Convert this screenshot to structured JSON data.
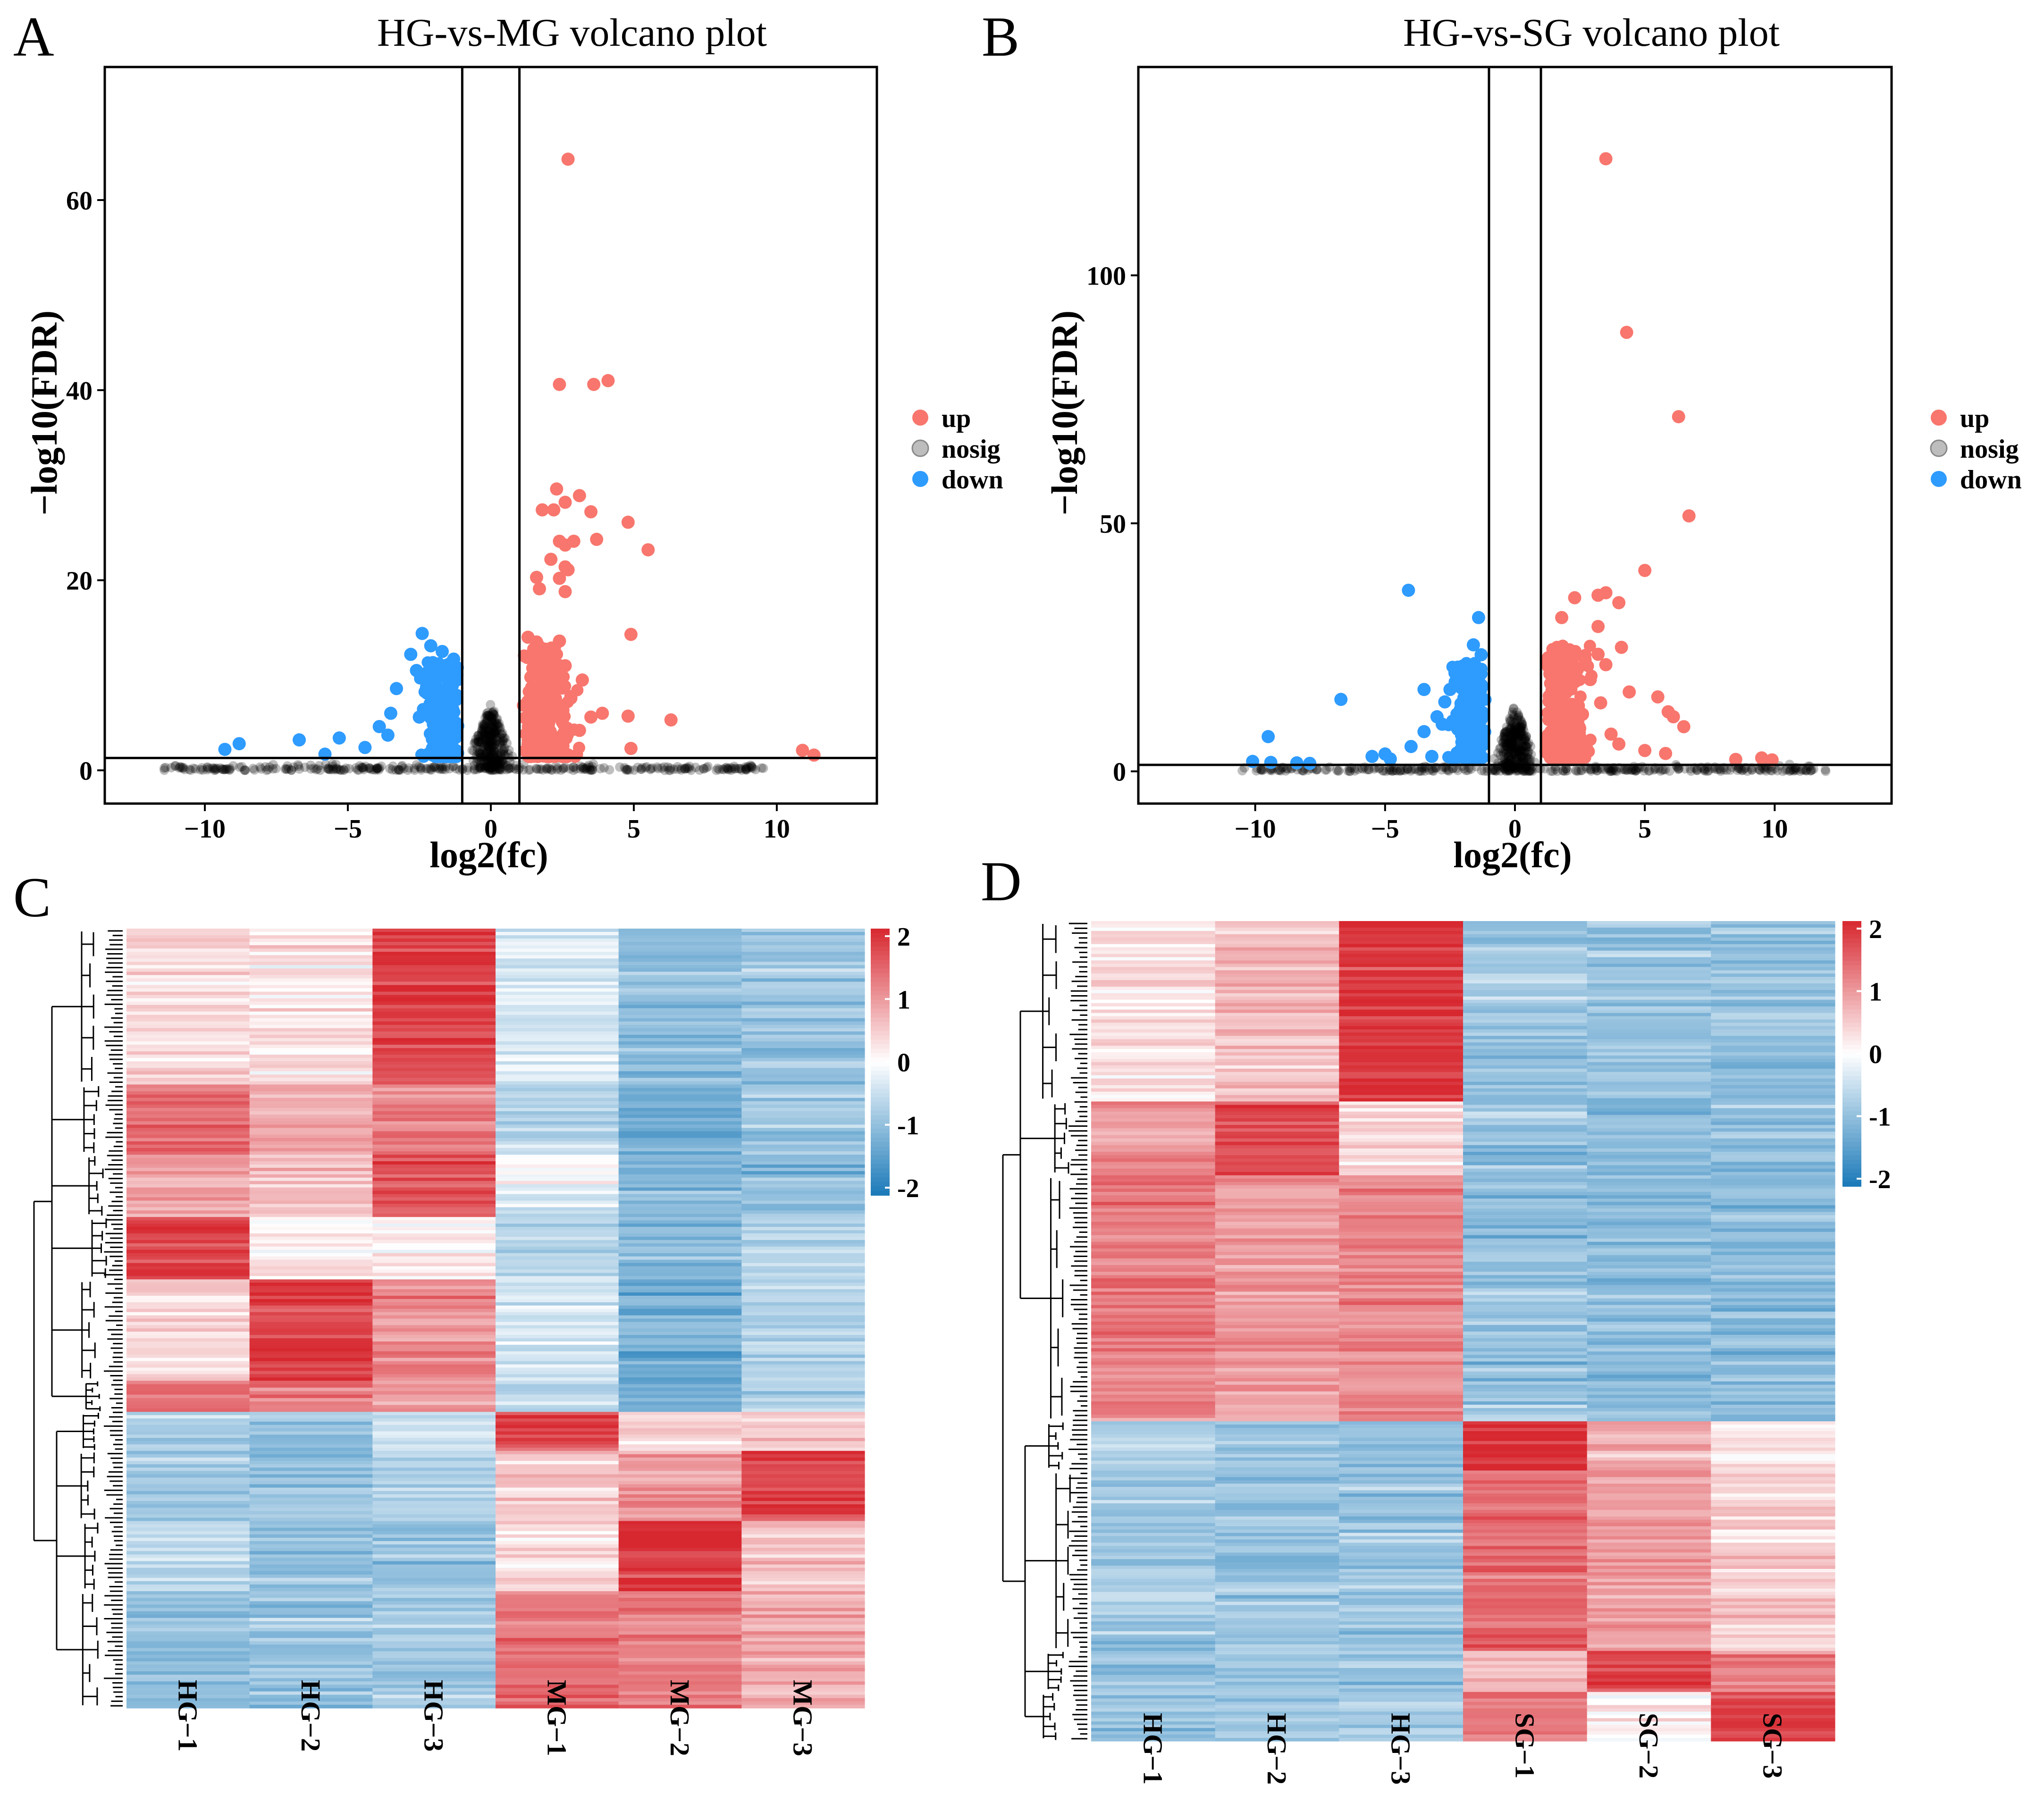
{
  "colors": {
    "up": "#F8766D",
    "nosig": "#BDBDBD",
    "down": "#2E9BFF",
    "high": "#D7272F",
    "mid": "#FFFFFF",
    "low": "#1A79B8"
  },
  "chart_data": [
    {
      "panel": "A",
      "type": "scatter",
      "title": "HG-vs-MG volcano plot",
      "xlabel": "log2(fc)",
      "ylabel": "−log10(FDR)",
      "xlim": [
        -13.5,
        13.5
      ],
      "ylim": [
        -3.5,
        74
      ],
      "xticks": [
        -10,
        -5,
        0,
        5,
        10
      ],
      "xtick_labels": [
        "−10",
        "−5",
        "0",
        "5",
        "10"
      ],
      "yticks": [
        0,
        20,
        40,
        60
      ],
      "ytick_labels": [
        "0",
        "20",
        "40",
        "60"
      ],
      "thresholds": {
        "x": [
          -1,
          1
        ],
        "y": 1.3
      },
      "legend": [
        "up",
        "nosig",
        "down"
      ],
      "up_points": [
        [
          2.7,
          64.3
        ],
        [
          2.4,
          40.6
        ],
        [
          3.6,
          40.6
        ],
        [
          4.1,
          41
        ],
        [
          2.3,
          29.6
        ],
        [
          2.6,
          28.2
        ],
        [
          3.1,
          28.9
        ],
        [
          1.8,
          27.4
        ],
        [
          2.2,
          27.4
        ],
        [
          3.5,
          27.2
        ],
        [
          4.8,
          26.1
        ],
        [
          2.4,
          24.1
        ],
        [
          2.9,
          24.1
        ],
        [
          2.6,
          23.7
        ],
        [
          3.7,
          24.3
        ],
        [
          5.5,
          23.2
        ],
        [
          2.1,
          22.2
        ],
        [
          2.6,
          21.4
        ],
        [
          2.7,
          21.1
        ],
        [
          1.6,
          20.3
        ],
        [
          2.4,
          20.2
        ],
        [
          1.7,
          19.1
        ],
        [
          2.6,
          18.8
        ],
        [
          4.9,
          14.3
        ],
        [
          1.3,
          14
        ],
        [
          1.6,
          13.5
        ],
        [
          2.4,
          13.6
        ],
        [
          1.2,
          12
        ],
        [
          1.5,
          11
        ],
        [
          2.6,
          11
        ],
        [
          1.4,
          9.8
        ],
        [
          3.2,
          9.5
        ],
        [
          1.8,
          8.2
        ],
        [
          2.8,
          7.6
        ],
        [
          4.8,
          5.7
        ],
        [
          6.3,
          5.3
        ],
        [
          3.5,
          5.6
        ],
        [
          3.9,
          6
        ],
        [
          1.6,
          6.5
        ],
        [
          2.5,
          5.1
        ],
        [
          3.1,
          4.2
        ],
        [
          2.2,
          3.5
        ],
        [
          4.9,
          2.3
        ],
        [
          10.9,
          2.1
        ],
        [
          11.3,
          1.6
        ]
      ],
      "down_points": [
        [
          -2.4,
          14.4
        ],
        [
          -2.1,
          13.1
        ],
        [
          -1.7,
          12.5
        ],
        [
          -2.8,
          12.2
        ],
        [
          -1.3,
          11.7
        ],
        [
          -1.9,
          11
        ],
        [
          -2.6,
          10.5
        ],
        [
          -2.2,
          10
        ],
        [
          -1.4,
          9.8
        ],
        [
          -3.3,
          8.6
        ],
        [
          -2.0,
          8
        ],
        [
          -1.5,
          7.4
        ],
        [
          -3.5,
          6
        ],
        [
          -2.5,
          5.6
        ],
        [
          -3.9,
          4.6
        ],
        [
          -3.6,
          3.7
        ],
        [
          -5.3,
          3.4
        ],
        [
          -6.7,
          3.2
        ],
        [
          -8.8,
          2.8
        ],
        [
          -4.4,
          2.4
        ],
        [
          -9.3,
          2.2
        ],
        [
          -5.8,
          1.7
        ]
      ],
      "nosig_extent": {
        "left": -11.5,
        "right": 9.6
      }
    },
    {
      "panel": "B",
      "type": "scatter",
      "title": "HG-vs-SG volcano plot",
      "xlabel": "log2(fc)",
      "ylabel": "−log10(FDR)",
      "xlim": [
        -14.5,
        14.5
      ],
      "ylim": [
        -6.5,
        142
      ],
      "xticks": [
        -10,
        -5,
        0,
        5,
        10
      ],
      "xtick_labels": [
        "−10",
        "−5",
        "0",
        "5",
        "10"
      ],
      "yticks": [
        0,
        50,
        100
      ],
      "ytick_labels": [
        "0",
        "50",
        "100"
      ],
      "thresholds": {
        "x": [
          -1,
          1
        ],
        "y": 1.3
      },
      "legend": [
        "up",
        "nosig",
        "down"
      ],
      "up_points": [
        [
          3.5,
          123.5
        ],
        [
          4.3,
          88.5
        ],
        [
          6.3,
          71.5
        ],
        [
          6.7,
          51.5
        ],
        [
          5.0,
          40.5
        ],
        [
          3.5,
          36
        ],
        [
          3.2,
          35.5
        ],
        [
          2.3,
          35
        ],
        [
          4.0,
          34
        ],
        [
          1.8,
          31
        ],
        [
          3.2,
          29.2
        ],
        [
          2.1,
          24.5
        ],
        [
          3.2,
          23.6
        ],
        [
          2.7,
          22.5
        ],
        [
          3.5,
          21.5
        ],
        [
          4.1,
          25
        ],
        [
          2.4,
          20.5
        ],
        [
          1.6,
          19
        ],
        [
          2.9,
          18.5
        ],
        [
          4.4,
          16
        ],
        [
          5.5,
          15
        ],
        [
          1.5,
          14
        ],
        [
          2.2,
          13.5
        ],
        [
          3.3,
          13.8
        ],
        [
          5.9,
          12
        ],
        [
          2.6,
          11.5
        ],
        [
          6.1,
          11
        ],
        [
          6.5,
          9
        ],
        [
          2.0,
          10
        ],
        [
          3.7,
          7.5
        ],
        [
          4.0,
          5.5
        ],
        [
          5.0,
          4.2
        ],
        [
          5.8,
          3.6
        ],
        [
          8.5,
          2.4
        ],
        [
          9.5,
          2.7
        ],
        [
          9.9,
          2.3
        ],
        [
          2.6,
          4.5
        ],
        [
          1.9,
          8
        ]
      ],
      "down_points": [
        [
          -4.1,
          36.5
        ],
        [
          -1.4,
          31
        ],
        [
          -1.6,
          25.5
        ],
        [
          -1.3,
          23.5
        ],
        [
          -2.2,
          21
        ],
        [
          -1.9,
          19.5
        ],
        [
          -1.5,
          17.5
        ],
        [
          -2.5,
          16.5
        ],
        [
          -3.5,
          16.5
        ],
        [
          -1.8,
          15
        ],
        [
          -6.7,
          14.5
        ],
        [
          -2.7,
          14
        ],
        [
          -1.4,
          13.8
        ],
        [
          -2.1,
          12.5
        ],
        [
          -3.0,
          11
        ],
        [
          -2.8,
          9.5
        ],
        [
          -2.2,
          8.5
        ],
        [
          -3.5,
          8
        ],
        [
          -4.0,
          5
        ],
        [
          -9.5,
          7
        ],
        [
          -5.5,
          3
        ],
        [
          -5.0,
          3.5
        ],
        [
          -10.1,
          2
        ],
        [
          -7.9,
          1.6
        ],
        [
          -4.8,
          2.5
        ],
        [
          -3.2,
          3
        ],
        [
          -9.4,
          1.8
        ],
        [
          -8.4,
          1.7
        ]
      ],
      "nosig_extent": {
        "left": -10.5,
        "right": 12.0
      }
    },
    {
      "panel": "C",
      "type": "heatmap",
      "columns": [
        "HG−1",
        "HG−2",
        "HG−3",
        "MG−1",
        "MG−2",
        "MG−3"
      ],
      "colorbar": {
        "min": -2,
        "max": 2,
        "ticks": [
          "2",
          "1",
          "0",
          "-1",
          "-2"
        ]
      },
      "blocks": [
        {
          "frac": 0.2,
          "values": [
            0.3,
            0.2,
            1.8,
            -0.3,
            -1.0,
            -0.9
          ]
        },
        {
          "frac": 0.09,
          "values": [
            1.4,
            0.8,
            1.2,
            -0.6,
            -1.3,
            -0.8
          ]
        },
        {
          "frac": 0.08,
          "values": [
            0.9,
            0.6,
            1.6,
            -0.2,
            -1.1,
            -1.0
          ]
        },
        {
          "frac": 0.08,
          "values": [
            1.8,
            0.1,
            0.1,
            -0.6,
            -1.0,
            -0.6
          ]
        },
        {
          "frac": 0.13,
          "values": [
            0.4,
            1.8,
            1.1,
            -0.4,
            -1.2,
            -0.7
          ]
        },
        {
          "frac": 0.04,
          "values": [
            1.3,
            1.2,
            0.9,
            -0.6,
            -1.2,
            -0.8
          ]
        },
        {
          "frac": 0.05,
          "values": [
            -0.8,
            -1.0,
            -0.5,
            1.8,
            0.4,
            0.5
          ]
        },
        {
          "frac": 0.09,
          "values": [
            -0.8,
            -0.9,
            -0.7,
            0.5,
            0.9,
            1.8
          ]
        },
        {
          "frac": 0.09,
          "values": [
            -0.6,
            -0.9,
            -0.9,
            0.3,
            1.9,
            0.6
          ]
        },
        {
          "frac": 0.15,
          "values": [
            -1.0,
            -0.9,
            -0.8,
            1.3,
            1.2,
            0.8
          ]
        }
      ]
    },
    {
      "panel": "D",
      "type": "heatmap",
      "columns": [
        "HG−1",
        "HG−2",
        "HG−3",
        "SG−1",
        "SG−2",
        "SG−3"
      ],
      "colorbar": {
        "min": -2,
        "max": 2,
        "ticks": [
          "2",
          "1",
          "0",
          "-1",
          "-2"
        ]
      },
      "blocks": [
        {
          "frac": 0.22,
          "values": [
            0.3,
            0.6,
            1.9,
            -0.9,
            -0.9,
            -0.9
          ]
        },
        {
          "frac": 0.09,
          "values": [
            1.0,
            1.7,
            0.4,
            -0.9,
            -1.1,
            -0.9
          ]
        },
        {
          "frac": 0.3,
          "values": [
            1.2,
            0.9,
            1.1,
            -0.9,
            -1.0,
            -1.0
          ]
        },
        {
          "frac": 0.06,
          "values": [
            -0.6,
            -0.8,
            -0.9,
            1.9,
            0.8,
            0.2
          ]
        },
        {
          "frac": 0.22,
          "values": [
            -0.8,
            -0.9,
            -0.9,
            1.4,
            0.9,
            0.4
          ]
        },
        {
          "frac": 0.05,
          "values": [
            -0.9,
            -0.9,
            -0.9,
            0.6,
            1.7,
            1.1
          ]
        },
        {
          "frac": 0.06,
          "values": [
            -0.9,
            -0.8,
            -0.7,
            1.3,
            0.1,
            1.8
          ]
        }
      ]
    }
  ]
}
